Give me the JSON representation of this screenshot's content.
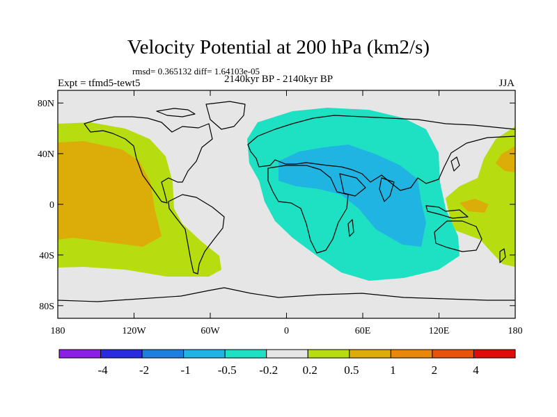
{
  "title": "Velocity Potential at 200 hPa (km2/s)",
  "stats": "rmsd= 0.365132 diff= 1.64103e-05",
  "period": "2140kyr BP - 2140kyr BP",
  "experiment": "Expt = tfmd5-tewt5",
  "season": "JJA",
  "lat_ticks": [
    "80N",
    "40N",
    "0",
    "40S",
    "80S"
  ],
  "lon_ticks": [
    "180",
    "120W",
    "60W",
    "0",
    "60E",
    "120E",
    "180"
  ],
  "colorbar": {
    "colors": [
      "#8a1fe6",
      "#2a2ae0",
      "#1d7fe0",
      "#20b4e2",
      "#1ee0c2",
      "#e6e6e6",
      "#b7dc10",
      "#dcac08",
      "#e8870a",
      "#e8520a",
      "#e00c0c"
    ],
    "labels": [
      "-4",
      "-2",
      "-1",
      "-0.5",
      "-0.2",
      "0.2",
      "0.5",
      "1",
      "2",
      "4"
    ]
  },
  "colors": {
    "neutral": "#e6e6e6",
    "green": "#b7dc10",
    "orange": "#dcac08",
    "cyan": "#1ee0c2",
    "blue": "#20b4e2"
  }
}
